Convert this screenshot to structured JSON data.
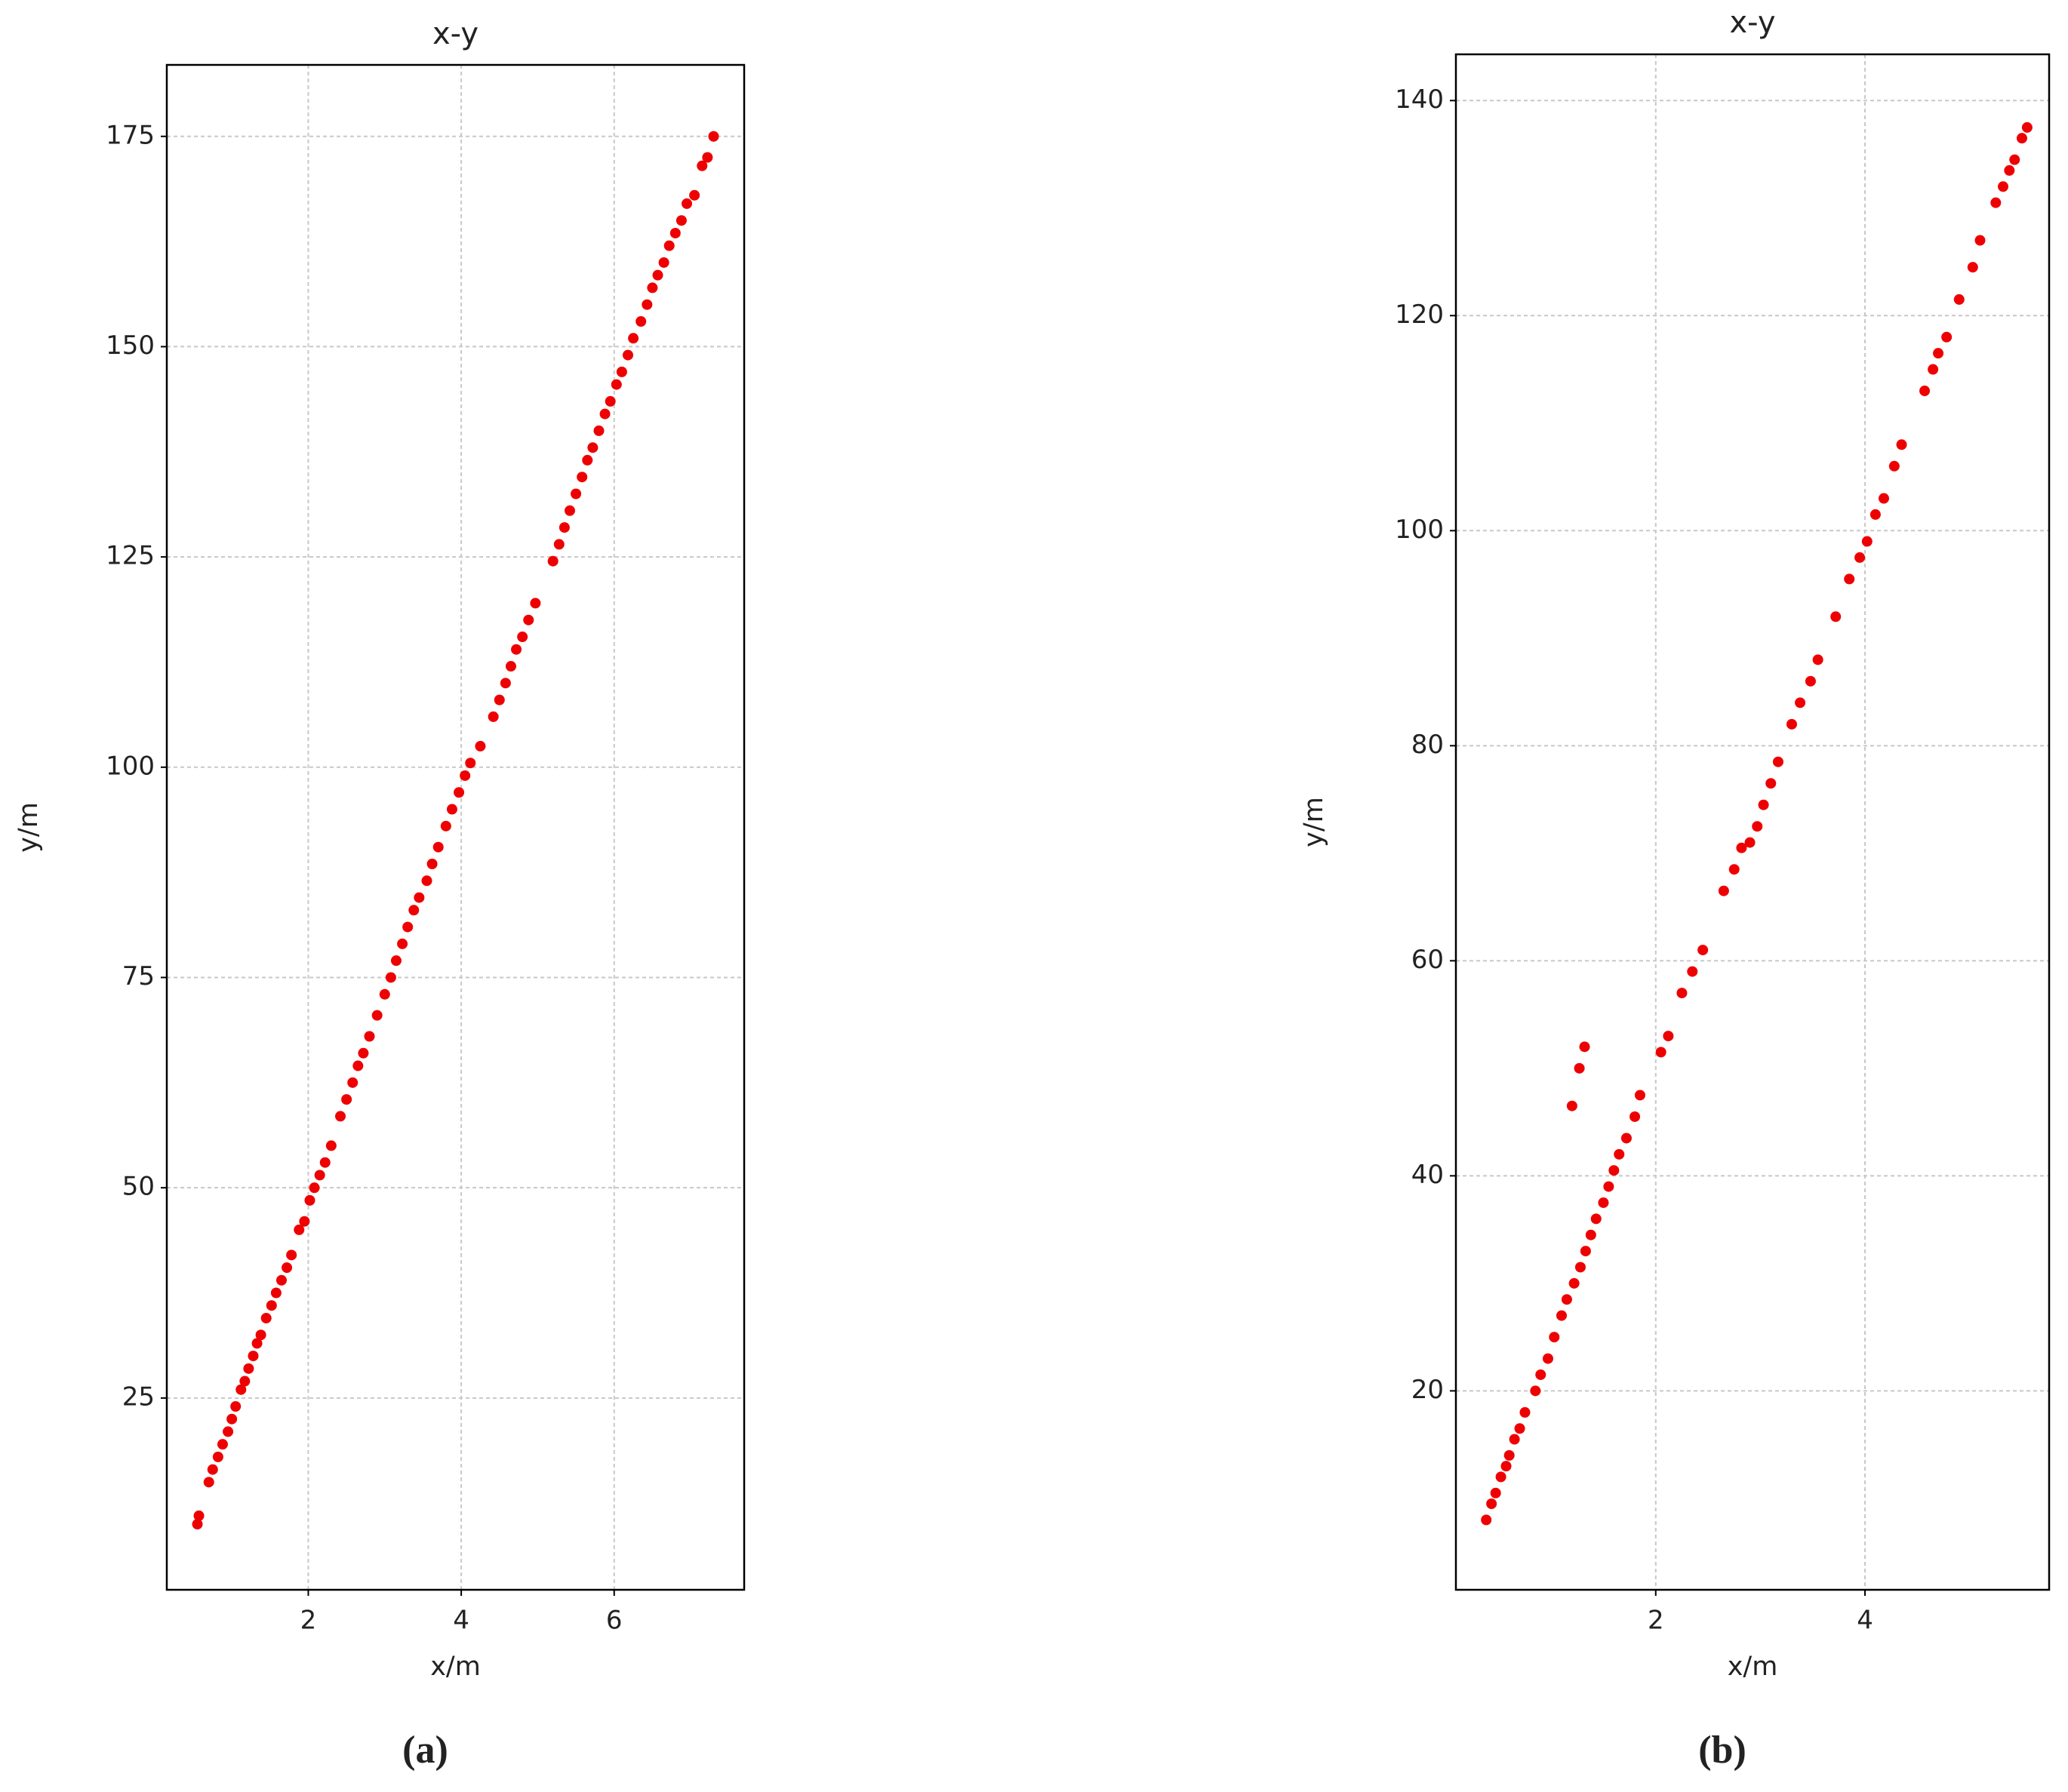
{
  "chart_data": [
    {
      "type": "scatter",
      "title": "x-y",
      "xlabel": "x/m",
      "ylabel": "y/m",
      "caption": "(a)",
      "color": "#ee0000",
      "grid": true,
      "xlim": [
        0.15,
        7.7
      ],
      "ylim": [
        2.2,
        183.5
      ],
      "xticks": [
        2,
        4,
        6
      ],
      "yticks": [
        25,
        50,
        75,
        100,
        125,
        150,
        175
      ],
      "x": [
        0.55,
        0.57,
        0.7,
        0.75,
        0.82,
        0.88,
        0.95,
        1.0,
        1.05,
        1.12,
        1.17,
        1.22,
        1.28,
        1.33,
        1.38,
        1.45,
        1.52,
        1.58,
        1.65,
        1.72,
        1.78,
        1.88,
        1.95,
        2.02,
        2.08,
        2.15,
        2.22,
        2.3,
        2.42,
        2.5,
        2.58,
        2.65,
        2.72,
        2.8,
        2.9,
        3.0,
        3.08,
        3.15,
        3.23,
        3.3,
        3.38,
        3.45,
        3.55,
        3.62,
        3.7,
        3.8,
        3.88,
        3.97,
        4.05,
        4.12,
        4.25,
        4.42,
        4.5,
        4.58,
        4.65,
        4.72,
        4.8,
        4.88,
        4.97,
        5.2,
        5.28,
        5.35,
        5.42,
        5.5,
        5.58,
        5.65,
        5.72,
        5.8,
        5.88,
        5.95,
        6.03,
        6.1,
        6.18,
        6.25,
        6.35,
        6.43,
        6.5,
        6.57,
        6.65,
        6.72,
        6.8,
        6.88,
        6.95,
        7.05,
        7.15,
        7.22,
        7.3
      ],
      "values": [
        10,
        11,
        15,
        16.5,
        18,
        19.5,
        21,
        22.5,
        24,
        26,
        27,
        28.5,
        30,
        31.5,
        32.5,
        34.5,
        36,
        37.5,
        39,
        40.5,
        42,
        45,
        46,
        48.5,
        50,
        51.5,
        53,
        55,
        58.5,
        60.5,
        62.5,
        64.5,
        66,
        68,
        70.5,
        73,
        75,
        77,
        79,
        81,
        83,
        84.5,
        86.5,
        88.5,
        90.5,
        93,
        95,
        97,
        99,
        100.5,
        102.5,
        106,
        108,
        110,
        112,
        114,
        115.5,
        117.5,
        119.5,
        124.5,
        126.5,
        128.5,
        130.5,
        132.5,
        134.5,
        136.5,
        138,
        140,
        142,
        143.5,
        145.5,
        147,
        149,
        151,
        153,
        155,
        157,
        158.5,
        160,
        162,
        163.5,
        165,
        167,
        168,
        171.5,
        172.5,
        175
      ]
    },
    {
      "type": "scatter",
      "title": "x-y",
      "xlabel": "x/m",
      "ylabel": "y/m",
      "caption": "(b)",
      "color": "#ee0000",
      "grid": true,
      "xlim": [
        0.09,
        5.76
      ],
      "ylim": [
        1.5,
        144.3
      ],
      "xticks": [
        2,
        4
      ],
      "yticks": [
        20,
        40,
        60,
        80,
        100,
        120,
        140
      ],
      "x": [
        0.38,
        0.43,
        0.47,
        0.52,
        0.57,
        0.6,
        0.65,
        0.7,
        0.75,
        0.85,
        0.9,
        0.97,
        1.03,
        1.1,
        1.15,
        1.22,
        1.28,
        1.33,
        1.38,
        1.43,
        1.5,
        1.55,
        1.6,
        1.65,
        1.72,
        1.8,
        1.85,
        1.2,
        1.27,
        1.32,
        2.05,
        2.12,
        2.25,
        2.35,
        2.45,
        2.65,
        2.75,
        2.82,
        2.9,
        2.97,
        3.03,
        3.1,
        3.17,
        3.3,
        3.38,
        3.48,
        3.55,
        3.72,
        3.85,
        3.95,
        4.02,
        4.1,
        4.18,
        4.28,
        4.35,
        4.57,
        4.65,
        4.7,
        4.78,
        4.9,
        5.03,
        5.1,
        5.25,
        5.32,
        5.38,
        5.43,
        5.5,
        5.55
      ],
      "values": [
        8,
        9.5,
        10.5,
        12,
        13,
        14,
        15.5,
        16.5,
        18,
        20,
        21.5,
        23,
        25,
        27,
        28.5,
        30,
        31.5,
        33,
        34.5,
        36,
        37.5,
        39,
        40.5,
        42,
        43.5,
        45.5,
        47.5,
        46.5,
        50,
        52,
        51.5,
        53,
        57,
        59,
        61,
        66.5,
        68.5,
        70.5,
        71,
        72.5,
        74.5,
        76.5,
        78.5,
        82,
        84,
        86,
        88,
        92,
        95.5,
        97.5,
        99,
        101.5,
        103,
        106,
        108,
        113,
        115,
        116.5,
        118,
        121.5,
        124.5,
        127,
        130.5,
        132,
        133.5,
        134.5,
        136.5,
        137.5
      ]
    }
  ]
}
